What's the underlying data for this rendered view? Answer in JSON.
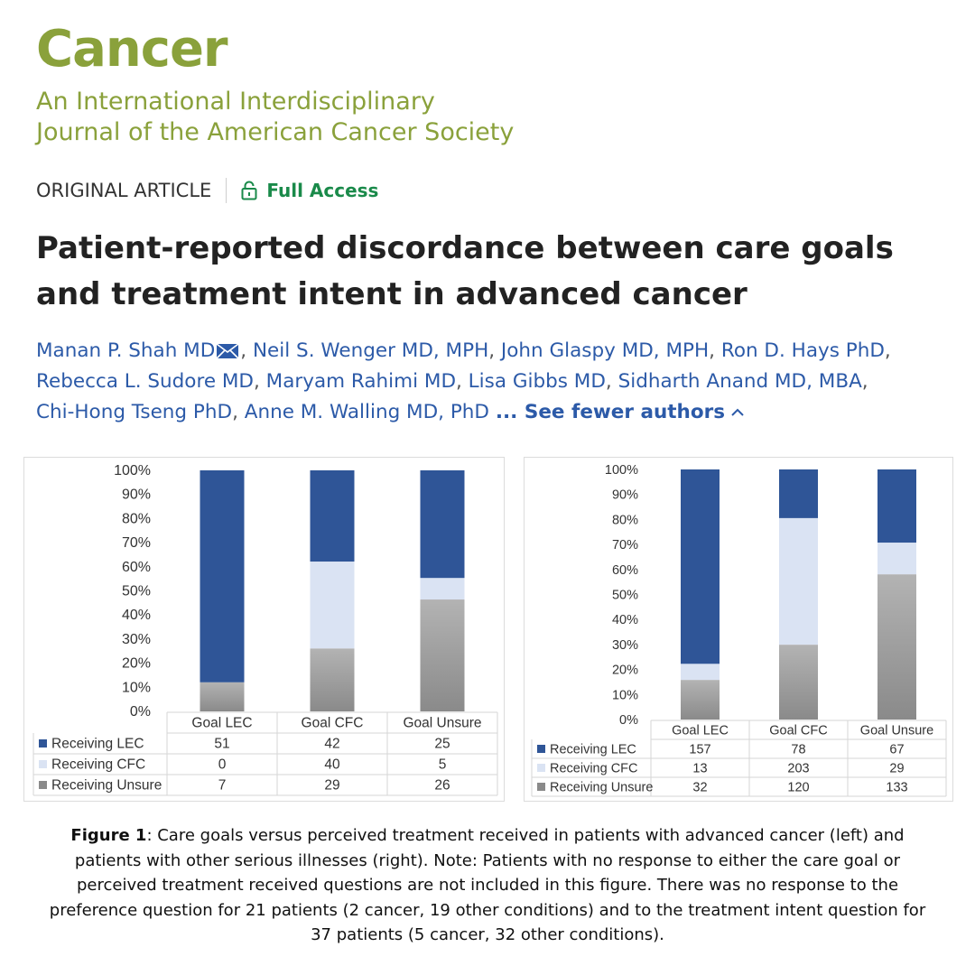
{
  "journal": {
    "name": "Cancer",
    "subtitle_line1": "An International Interdisciplinary",
    "subtitle_line2": "Journal of the American Cancer Society"
  },
  "article": {
    "type": "ORIGINAL ARTICLE",
    "access": "Full Access",
    "title": "Patient-reported discordance between care goals and treatment intent in advanced cancer",
    "authors": [
      "Manan P. Shah MD",
      "Neil S. Wenger MD, MPH",
      "John Glaspy MD, MPH",
      "Ron D. Hays PhD",
      "Rebecca L. Sudore MD",
      "Maryam Rahimi MD",
      "Lisa Gibbs MD",
      "Sidharth Anand MD, MBA",
      "Chi-Hong Tseng PhD",
      "Anne M. Walling MD, PhD"
    ],
    "author_toggle_prefix": "...",
    "author_toggle": "See fewer authors"
  },
  "colors": {
    "journal": "#8aa13b",
    "receiving_lec": "#2f5597",
    "receiving_cfc": "#dae3f3",
    "receiving_unsure_top": "#b3b3b3",
    "receiving_unsure_bottom": "#8a8a8a",
    "access": "#1a8a4a",
    "author_link": "#2c5aa8"
  },
  "chart_data": [
    {
      "type": "bar",
      "stacked": "percent",
      "categories": [
        "Goal LEC",
        "Goal CFC",
        "Goal Unsure"
      ],
      "series": [
        {
          "name": "Receiving LEC",
          "values": [
            51,
            42,
            25
          ]
        },
        {
          "name": "Receiving CFC",
          "values": [
            0,
            40,
            5
          ]
        },
        {
          "name": "Receiving Unsure",
          "values": [
            7,
            29,
            26
          ]
        }
      ],
      "y_ticks": [
        "0%",
        "10%",
        "20%",
        "30%",
        "40%",
        "50%",
        "60%",
        "70%",
        "80%",
        "90%",
        "100%"
      ],
      "ylim": [
        0,
        100
      ],
      "grid": false,
      "legend": "data table below chart"
    },
    {
      "type": "bar",
      "stacked": "percent",
      "categories": [
        "Goal LEC",
        "Goal CFC",
        "Goal Unsure"
      ],
      "series": [
        {
          "name": "Receiving LEC",
          "values": [
            157,
            78,
            67
          ]
        },
        {
          "name": "Receiving CFC",
          "values": [
            13,
            203,
            29
          ]
        },
        {
          "name": "Receiving Unsure",
          "values": [
            32,
            120,
            133
          ]
        }
      ],
      "y_ticks": [
        "0%",
        "10%",
        "20%",
        "30%",
        "40%",
        "50%",
        "60%",
        "70%",
        "80%",
        "90%",
        "100%"
      ],
      "ylim": [
        0,
        100
      ],
      "grid": false,
      "legend": "data table below chart"
    }
  ],
  "caption": {
    "label": "Figure 1",
    "text": ": Care goals versus perceived treatment received in patients with advanced cancer (left) and patients with other serious illnesses (right). Note: Patients with no response to either the care goal or perceived treatment received questions are not included in this figure. There was no response to the preference question for 21 patients (2 cancer, 19 other conditions) and to the treatment intent question for 37 patients (5 cancer, 32 other conditions)."
  }
}
